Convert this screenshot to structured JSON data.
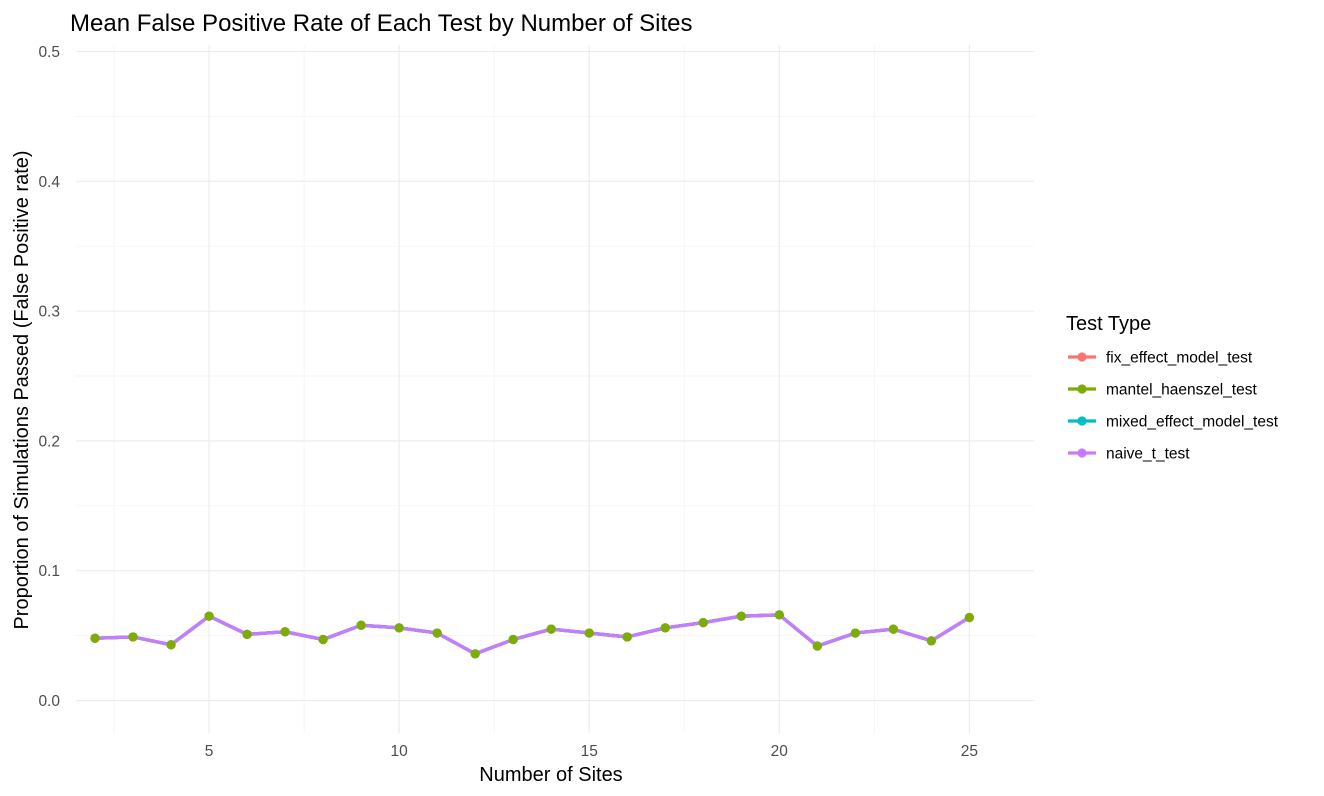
{
  "chart_data": {
    "type": "line",
    "title": "Mean False Positive Rate of Each Test by Number of Sites",
    "xlabel": "Number of Sites",
    "ylabel": "Proportion of Simulations Passed (False Positive rate)",
    "xlim": [
      1.5,
      26.7
    ],
    "ylim": [
      -0.025,
      0.505
    ],
    "x_ticks": [
      5,
      10,
      15,
      20,
      25
    ],
    "y_ticks": [
      0.0,
      0.1,
      0.2,
      0.3,
      0.4,
      0.5
    ],
    "x_tick_labels": [
      "5",
      "10",
      "15",
      "20",
      "25"
    ],
    "y_tick_labels": [
      "0.0",
      "0.1",
      "0.2",
      "0.3",
      "0.4",
      "0.5"
    ],
    "grid": true,
    "legend": {
      "title": "Test Type",
      "position": "right"
    },
    "x": [
      2,
      3,
      4,
      5,
      6,
      7,
      8,
      9,
      10,
      11,
      12,
      13,
      14,
      15,
      16,
      17,
      18,
      19,
      20,
      21,
      22,
      23,
      24,
      25
    ],
    "series": [
      {
        "name": "fix_effect_model_test",
        "color": "#F8766D",
        "values": [
          0.048,
          0.049,
          0.043,
          0.065,
          0.051,
          0.053,
          0.047,
          0.058,
          0.056,
          0.052,
          0.036,
          0.047,
          0.055,
          0.052,
          0.049,
          0.056,
          0.06,
          0.065,
          0.066,
          0.042,
          0.052,
          0.055,
          0.046,
          0.064
        ]
      },
      {
        "name": "mantel_haenszel_test",
        "color": "#7CAE00",
        "values": [
          0.048,
          0.049,
          0.043,
          0.065,
          0.051,
          0.053,
          0.047,
          0.058,
          0.056,
          0.052,
          0.036,
          0.047,
          0.055,
          0.052,
          0.049,
          0.056,
          0.06,
          0.065,
          0.066,
          0.042,
          0.052,
          0.055,
          0.046,
          0.064
        ]
      },
      {
        "name": "mixed_effect_model_test",
        "color": "#00BFC4",
        "values": [
          0.048,
          0.049,
          0.043,
          0.065,
          0.051,
          0.053,
          0.047,
          0.058,
          0.056,
          0.052,
          0.036,
          0.047,
          0.055,
          0.052,
          0.049,
          0.056,
          0.06,
          0.065,
          0.066,
          0.042,
          0.052,
          0.055,
          0.046,
          0.064
        ]
      },
      {
        "name": "naive_t_test",
        "color": "#C77CFF",
        "values": [
          0.048,
          0.049,
          0.043,
          0.065,
          0.051,
          0.053,
          0.047,
          0.058,
          0.056,
          0.052,
          0.036,
          0.047,
          0.055,
          0.052,
          0.049,
          0.056,
          0.06,
          0.065,
          0.066,
          0.042,
          0.052,
          0.055,
          0.046,
          0.064
        ]
      }
    ],
    "line_order": [
      "fix_effect_model_test",
      "mantel_haenszel_test",
      "mixed_effect_model_test",
      "naive_t_test"
    ],
    "point_order": [
      "fix_effect_model_test",
      "mixed_effect_model_test",
      "naive_t_test",
      "mantel_haenszel_test"
    ]
  }
}
